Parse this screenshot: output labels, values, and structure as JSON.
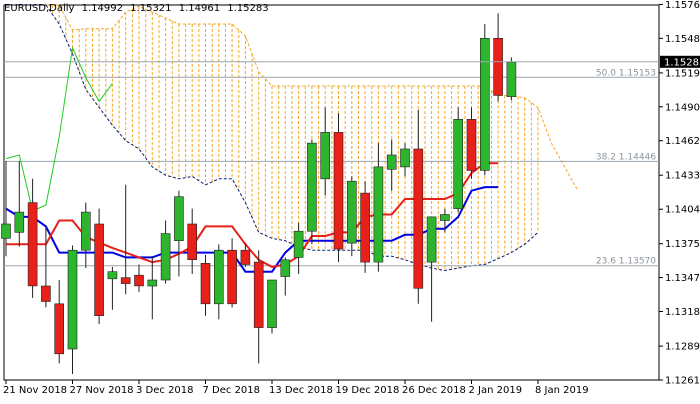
{
  "header": {
    "symbol": "EURUSD,Daily",
    "open": "1.14992",
    "high": "1.15321",
    "low": "1.14961",
    "close": "1.15283"
  },
  "colors": {
    "bull": "#2db52d",
    "bear": "#e8201a",
    "kijun": "#0000e6",
    "tenkan": "#e8201a",
    "chikou": "#22cc22",
    "cloud": "#f5a623",
    "spanB": "#0a1a6e",
    "fib": "#9aa5ae"
  },
  "chart_data": {
    "type": "candlestick",
    "ylim": [
      1.1261,
      1.1576
    ],
    "y_ticks": [
      "1.15765",
      "1.15480",
      "1.15190",
      "1.14905",
      "1.14620",
      "1.14330",
      "1.14045",
      "1.13755",
      "1.13470",
      "1.13185",
      "1.12895",
      "1.12610"
    ],
    "x_ticks": [
      {
        "i": 0,
        "label": "21 Nov 2018"
      },
      {
        "i": 5,
        "label": "27 Nov 2018"
      },
      {
        "i": 10,
        "label": "3 Dec 2018"
      },
      {
        "i": 15,
        "label": "7 Dec 2018"
      },
      {
        "i": 20,
        "label": "13 Dec 2018"
      },
      {
        "i": 25,
        "label": "19 Dec 2018"
      },
      {
        "i": 30,
        "label": "26 Dec 2018"
      },
      {
        "i": 35,
        "label": "2 Jan 2019"
      },
      {
        "i": 40,
        "label": "8 Jan 2019"
      }
    ],
    "current_price": "1.15283",
    "candles": [
      {
        "o": 1.138,
        "h": 1.1445,
        "l": 1.1365,
        "c": 1.1392
      },
      {
        "o": 1.1385,
        "h": 1.1445,
        "l": 1.1373,
        "c": 1.1402
      },
      {
        "o": 1.141,
        "h": 1.143,
        "l": 1.133,
        "c": 1.134
      },
      {
        "o": 1.134,
        "h": 1.139,
        "l": 1.1322,
        "c": 1.1327
      },
      {
        "o": 1.1325,
        "h": 1.1345,
        "l": 1.1275,
        "c": 1.1283
      },
      {
        "o": 1.1287,
        "h": 1.1374,
        "l": 1.1266,
        "c": 1.137
      },
      {
        "o": 1.137,
        "h": 1.141,
        "l": 1.1355,
        "c": 1.1402
      },
      {
        "o": 1.1392,
        "h": 1.1405,
        "l": 1.1308,
        "c": 1.1315
      },
      {
        "o": 1.1346,
        "h": 1.1356,
        "l": 1.132,
        "c": 1.1352
      },
      {
        "o": 1.1347,
        "h": 1.1425,
        "l": 1.1333,
        "c": 1.1342
      },
      {
        "o": 1.1349,
        "h": 1.1358,
        "l": 1.1335,
        "c": 1.134
      },
      {
        "o": 1.134,
        "h": 1.1365,
        "l": 1.1312,
        "c": 1.1345
      },
      {
        "o": 1.1345,
        "h": 1.1395,
        "l": 1.1342,
        "c": 1.1384
      },
      {
        "o": 1.1378,
        "h": 1.142,
        "l": 1.1348,
        "c": 1.1415
      },
      {
        "o": 1.1392,
        "h": 1.1405,
        "l": 1.135,
        "c": 1.1362
      },
      {
        "o": 1.1359,
        "h": 1.1366,
        "l": 1.1315,
        "c": 1.1325
      },
      {
        "o": 1.1325,
        "h": 1.1375,
        "l": 1.1312,
        "c": 1.137
      },
      {
        "o": 1.137,
        "h": 1.138,
        "l": 1.1322,
        "c": 1.1325
      },
      {
        "o": 1.137,
        "h": 1.1376,
        "l": 1.1356,
        "c": 1.1358
      },
      {
        "o": 1.136,
        "h": 1.137,
        "l": 1.1275,
        "c": 1.1305
      },
      {
        "o": 1.1305,
        "h": 1.1345,
        "l": 1.13,
        "c": 1.1345
      },
      {
        "o": 1.1348,
        "h": 1.1364,
        "l": 1.1332,
        "c": 1.1362
      },
      {
        "o": 1.1364,
        "h": 1.1393,
        "l": 1.135,
        "c": 1.1386
      },
      {
        "o": 1.1386,
        "h": 1.1463,
        "l": 1.1375,
        "c": 1.146
      },
      {
        "o": 1.143,
        "h": 1.149,
        "l": 1.1416,
        "c": 1.1469
      },
      {
        "o": 1.1469,
        "h": 1.1485,
        "l": 1.136,
        "c": 1.1371
      },
      {
        "o": 1.1376,
        "h": 1.1432,
        "l": 1.1365,
        "c": 1.1428
      },
      {
        "o": 1.1418,
        "h": 1.1428,
        "l": 1.1351,
        "c": 1.136
      },
      {
        "o": 1.136,
        "h": 1.146,
        "l": 1.1352,
        "c": 1.144
      },
      {
        "o": 1.1438,
        "h": 1.1463,
        "l": 1.142,
        "c": 1.145
      },
      {
        "o": 1.144,
        "h": 1.146,
        "l": 1.1432,
        "c": 1.1455
      },
      {
        "o": 1.1455,
        "h": 1.1488,
        "l": 1.1325,
        "c": 1.1338
      },
      {
        "o": 1.136,
        "h": 1.1395,
        "l": 1.131,
        "c": 1.1398
      },
      {
        "o": 1.1395,
        "h": 1.1405,
        "l": 1.1385,
        "c": 1.14
      },
      {
        "o": 1.1405,
        "h": 1.149,
        "l": 1.1402,
        "c": 1.148
      },
      {
        "o": 1.148,
        "h": 1.149,
        "l": 1.143,
        "c": 1.1437
      },
      {
        "o": 1.1437,
        "h": 1.156,
        "l": 1.1433,
        "c": 1.1548
      },
      {
        "o": 1.1548,
        "h": 1.1569,
        "l": 1.1495,
        "c": 1.15
      },
      {
        "o": 1.1499,
        "h": 1.1532,
        "l": 1.1496,
        "c": 1.1528
      }
    ],
    "tenkan_sen": [
      [
        0,
        1.1375
      ],
      [
        2,
        1.1375
      ],
      [
        3,
        1.1375
      ],
      [
        4,
        1.1395
      ],
      [
        5,
        1.1395
      ],
      [
        6,
        1.1381
      ],
      [
        8,
        1.1372
      ],
      [
        10,
        1.1364
      ],
      [
        11,
        1.136
      ],
      [
        12,
        1.1362
      ],
      [
        13,
        1.1367
      ],
      [
        14,
        1.1373
      ],
      [
        15,
        1.139
      ],
      [
        16,
        1.139
      ],
      [
        17,
        1.139
      ],
      [
        18,
        1.1375
      ],
      [
        19,
        1.1362
      ],
      [
        20,
        1.1356
      ],
      [
        21,
        1.1358
      ],
      [
        22,
        1.1365
      ],
      [
        23,
        1.1382
      ],
      [
        24,
        1.1382
      ],
      [
        25,
        1.1385
      ],
      [
        26,
        1.1385
      ],
      [
        27,
        1.1398
      ],
      [
        28,
        1.14
      ],
      [
        29,
        1.14
      ],
      [
        30,
        1.1413
      ],
      [
        31,
        1.1413
      ],
      [
        32,
        1.1413
      ],
      [
        33,
        1.1413
      ],
      [
        34,
        1.1418
      ],
      [
        35,
        1.1435
      ],
      [
        36,
        1.1443
      ],
      [
        37,
        1.1443
      ]
    ],
    "kijun_sen": [
      [
        0,
        1.1405
      ],
      [
        1,
        1.1398
      ],
      [
        2,
        1.1398
      ],
      [
        3,
        1.139
      ],
      [
        4,
        1.1368
      ],
      [
        5,
        1.1368
      ],
      [
        6,
        1.1368
      ],
      [
        8,
        1.1368
      ],
      [
        9,
        1.1364
      ],
      [
        11,
        1.1364
      ],
      [
        12,
        1.1368
      ],
      [
        13,
        1.1368
      ],
      [
        14,
        1.1368
      ],
      [
        15,
        1.1368
      ],
      [
        16,
        1.1368
      ],
      [
        17,
        1.1368
      ],
      [
        18,
        1.1352
      ],
      [
        19,
        1.1352
      ],
      [
        20,
        1.1352
      ],
      [
        21,
        1.1368
      ],
      [
        22,
        1.1378
      ],
      [
        23,
        1.1378
      ],
      [
        24,
        1.1378
      ],
      [
        25,
        1.1378
      ],
      [
        26,
        1.1378
      ],
      [
        27,
        1.1378
      ],
      [
        28,
        1.1378
      ],
      [
        29,
        1.1378
      ],
      [
        30,
        1.1383
      ],
      [
        31,
        1.1383
      ],
      [
        32,
        1.1388
      ],
      [
        33,
        1.1388
      ],
      [
        34,
        1.1398
      ],
      [
        35,
        1.142
      ],
      [
        36,
        1.1423
      ],
      [
        37,
        1.1423
      ]
    ],
    "chikou_span": [
      [
        0,
        1.1447
      ],
      [
        1,
        1.145
      ],
      [
        2,
        1.1403
      ],
      [
        3,
        1.1408
      ],
      [
        4,
        1.1465
      ],
      [
        5,
        1.154
      ],
      [
        6,
        1.1515
      ],
      [
        7,
        1.1495
      ],
      [
        8,
        1.151
      ]
    ],
    "senkou_span_a": [
      [
        0,
        1.1576
      ],
      [
        4,
        1.1576
      ],
      [
        5,
        1.1555
      ],
      [
        6,
        1.1556
      ],
      [
        8,
        1.1556
      ],
      [
        9,
        1.157
      ],
      [
        10,
        1.1575
      ],
      [
        13,
        1.156
      ],
      [
        14,
        1.156
      ],
      [
        17,
        1.156
      ],
      [
        18,
        1.155
      ],
      [
        19,
        1.152
      ],
      [
        20,
        1.1508
      ],
      [
        21,
        1.1508
      ],
      [
        22,
        1.1508
      ],
      [
        23,
        1.1508
      ],
      [
        24,
        1.1508
      ],
      [
        25,
        1.1508
      ],
      [
        26,
        1.1508
      ],
      [
        27,
        1.1508
      ],
      [
        28,
        1.1508
      ],
      [
        29,
        1.1508
      ],
      [
        30,
        1.1508
      ],
      [
        31,
        1.1508
      ],
      [
        32,
        1.1508
      ],
      [
        33,
        1.1508
      ],
      [
        34,
        1.1508
      ],
      [
        35,
        1.1508
      ],
      [
        36,
        1.1508
      ],
      [
        37,
        1.15
      ],
      [
        38,
        1.15
      ],
      [
        39,
        1.1498
      ],
      [
        40,
        1.149
      ],
      [
        41,
        1.146
      ],
      [
        42,
        1.144
      ],
      [
        43,
        1.142
      ]
    ],
    "senkou_span_b": [
      [
        0,
        1.1576
      ],
      [
        3,
        1.1576
      ],
      [
        4,
        1.156
      ],
      [
        5,
        1.1535
      ],
      [
        6,
        1.1505
      ],
      [
        7,
        1.149
      ],
      [
        8,
        1.1475
      ],
      [
        9,
        1.1462
      ],
      [
        10,
        1.1455
      ],
      [
        11,
        1.144
      ],
      [
        12,
        1.1433
      ],
      [
        13,
        1.143
      ],
      [
        14,
        1.1432
      ],
      [
        15,
        1.1425
      ],
      [
        16,
        1.143
      ],
      [
        17,
        1.143
      ],
      [
        18,
        1.141
      ],
      [
        19,
        1.1385
      ],
      [
        20,
        1.138
      ],
      [
        21,
        1.1378
      ],
      [
        22,
        1.1373
      ],
      [
        23,
        1.137
      ],
      [
        24,
        1.137
      ],
      [
        25,
        1.137
      ],
      [
        26,
        1.137
      ],
      [
        27,
        1.137
      ],
      [
        28,
        1.1365
      ],
      [
        29,
        1.1365
      ],
      [
        30,
        1.1362
      ],
      [
        31,
        1.1358
      ],
      [
        32,
        1.1355
      ],
      [
        33,
        1.1353
      ],
      [
        34,
        1.1355
      ],
      [
        35,
        1.1357
      ],
      [
        36,
        1.1358
      ],
      [
        37,
        1.1363
      ],
      [
        38,
        1.1368
      ],
      [
        39,
        1.1375
      ],
      [
        40,
        1.1385
      ]
    ],
    "fib_levels": [
      {
        "price": 1.1357,
        "label": "23.6 1.13570"
      },
      {
        "price": 1.14446,
        "label": "38.2 1.14446"
      },
      {
        "price": 1.15153,
        "label": "50.0 1.15153"
      }
    ]
  }
}
